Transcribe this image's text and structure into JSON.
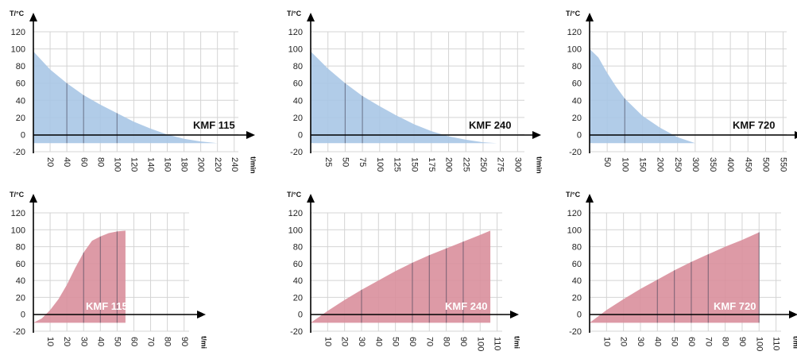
{
  "chart_data": [
    {
      "type": "area",
      "panel": "KMF 115 cooling",
      "ylabel": "T/°C",
      "xlabel": "t/min",
      "label": "KMF 115",
      "color": "#a9c6e6",
      "ylim": [
        -20,
        120
      ],
      "y_ticks": [
        120,
        100,
        80,
        60,
        40,
        20,
        0,
        -20
      ],
      "xlim": [
        0,
        245
      ],
      "x_ticks": [
        20,
        40,
        60,
        80,
        100,
        120,
        140,
        160,
        180,
        200,
        220,
        240
      ],
      "floor": -10,
      "x": [
        0,
        20,
        40,
        60,
        80,
        100,
        120,
        140,
        160,
        180,
        200,
        220
      ],
      "y": [
        97,
        76,
        60,
        46,
        35,
        25,
        15,
        7,
        0,
        -5,
        -8,
        -10
      ],
      "markers": [
        40,
        60,
        100
      ]
    },
    {
      "type": "area",
      "panel": "KMF 240 cooling",
      "ylabel": "T/°C",
      "xlabel": "t/min",
      "label": "KMF 240",
      "color": "#a9c6e6",
      "ylim": [
        -20,
        120
      ],
      "y_ticks": [
        120,
        100,
        80,
        60,
        40,
        20,
        0,
        -20
      ],
      "xlim": [
        0,
        310
      ],
      "x_ticks": [
        25,
        50,
        75,
        100,
        125,
        150,
        175,
        200,
        225,
        250,
        275,
        300
      ],
      "floor": -10,
      "x": [
        0,
        25,
        50,
        75,
        100,
        125,
        150,
        175,
        200,
        225,
        250,
        270
      ],
      "y": [
        97,
        77,
        60,
        45,
        33,
        22,
        12,
        4,
        -2,
        -6,
        -9,
        -10
      ],
      "markers": [
        50,
        75
      ]
    },
    {
      "type": "area",
      "panel": "KMF 720 cooling",
      "ylabel": "T/°C",
      "xlabel": "t/min",
      "label": "KMF 720",
      "color": "#a9c6e6",
      "ylim": [
        -20,
        120
      ],
      "y_ticks": [
        120,
        100,
        80,
        60,
        40,
        20,
        0,
        -20
      ],
      "xlim": [
        0,
        560
      ],
      "x_ticks": [
        50,
        100,
        150,
        200,
        250,
        300,
        350,
        400,
        450,
        500,
        550
      ],
      "floor": -10,
      "x": [
        0,
        25,
        50,
        75,
        100,
        150,
        200,
        250,
        300
      ],
      "y": [
        100,
        90,
        72,
        56,
        42,
        22,
        8,
        -3,
        -10
      ],
      "markers": [
        100
      ]
    },
    {
      "type": "area",
      "panel": "KMF 115 heating",
      "ylabel": "T/°C",
      "xlabel": "t/mi",
      "label": "KMF 115",
      "color": "#d98f9c",
      "ylim": [
        -20,
        120
      ],
      "y_ticks": [
        120,
        100,
        80,
        60,
        40,
        20,
        0,
        -20
      ],
      "xlim": [
        0,
        93
      ],
      "x_ticks": [
        10,
        20,
        30,
        40,
        50,
        60,
        70,
        80,
        90
      ],
      "floor": -10,
      "x": [
        0,
        5,
        10,
        15,
        20,
        25,
        30,
        35,
        40,
        45,
        50,
        55
      ],
      "y": [
        -10,
        -5,
        5,
        18,
        35,
        55,
        73,
        87,
        92,
        96,
        98,
        99
      ],
      "markers": [
        30,
        40,
        50
      ]
    },
    {
      "type": "area",
      "panel": "KMF 240 heating",
      "ylabel": "T/°C",
      "xlabel": "t/mi",
      "label": "KMF 240",
      "color": "#d98f9c",
      "ylim": [
        -20,
        120
      ],
      "y_ticks": [
        120,
        100,
        80,
        60,
        40,
        20,
        0,
        -20
      ],
      "xlim": [
        0,
        113
      ],
      "x_ticks": [
        10,
        20,
        30,
        40,
        50,
        60,
        70,
        80,
        90,
        100,
        110
      ],
      "floor": -10,
      "x": [
        0,
        10,
        20,
        30,
        40,
        50,
        60,
        70,
        80,
        90,
        100,
        106
      ],
      "y": [
        -10,
        4,
        17,
        29,
        40,
        51,
        61,
        70,
        78,
        86,
        94,
        99
      ],
      "markers": [
        30,
        60,
        70,
        80,
        90
      ]
    },
    {
      "type": "area",
      "panel": "KMF 720 heating",
      "ylabel": "T/°C",
      "xlabel": "t/mi",
      "label": "KMF 720",
      "color": "#d98f9c",
      "ylim": [
        -20,
        120
      ],
      "y_ticks": [
        120,
        100,
        80,
        60,
        40,
        20,
        0,
        -20
      ],
      "xlim": [
        0,
        113
      ],
      "x_ticks": [
        10,
        20,
        30,
        40,
        50,
        60,
        70,
        80,
        90,
        100,
        110
      ],
      "floor": -10,
      "x": [
        0,
        10,
        20,
        30,
        40,
        50,
        60,
        70,
        80,
        90,
        100
      ],
      "y": [
        -10,
        5,
        18,
        30,
        41,
        52,
        62,
        71,
        80,
        88,
        97
      ],
      "markers": [
        40,
        50,
        60,
        70,
        100
      ]
    }
  ]
}
